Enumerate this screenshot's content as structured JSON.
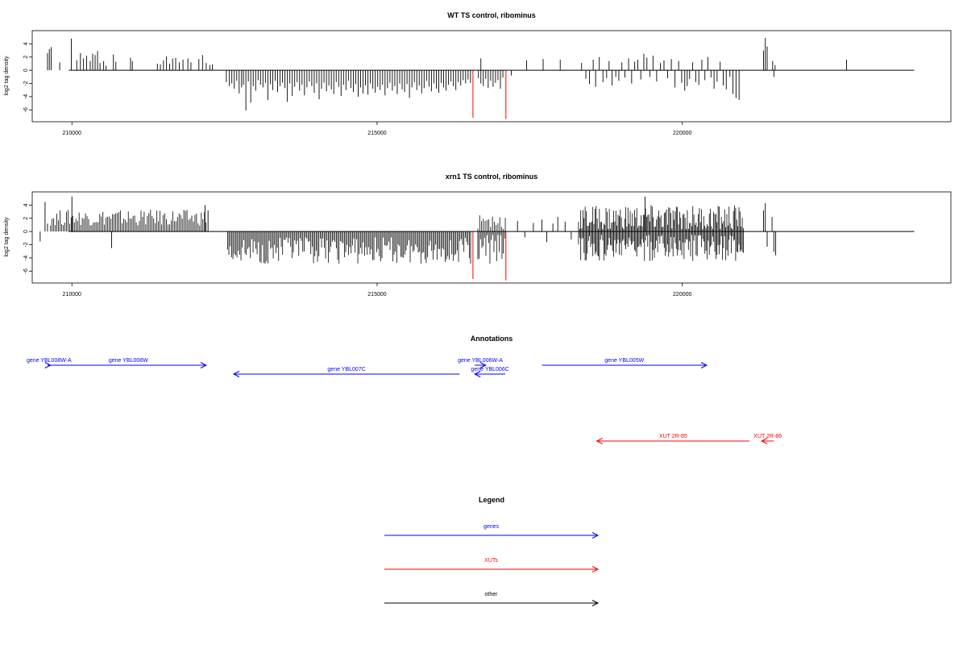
{
  "chart_data": [
    {
      "type": "bar",
      "title": "WT TS control, ribominus",
      "ylabel": "log2 tag density",
      "xlim": [
        209350,
        224400
      ],
      "ylim": [
        -7.8,
        6.0
      ],
      "x_ticks": [
        210000,
        215000,
        220000
      ],
      "y_ticks": [
        -6,
        -4,
        -2,
        0,
        2,
        4
      ],
      "colors": {
        "bars": "#000000",
        "highlight": "#ff0000"
      },
      "bars": [
        [
          209600,
          2.6
        ],
        [
          209630,
          3.2
        ],
        [
          209660,
          3.5
        ],
        [
          209800,
          1.2
        ],
        [
          209990,
          4.8
        ],
        [
          210080,
          1.5
        ],
        [
          210140,
          2.6
        ],
        [
          210190,
          1.8
        ],
        [
          210240,
          2.2
        ],
        [
          210300,
          1.4
        ],
        [
          210340,
          2.5
        ],
        [
          210380,
          2.3
        ],
        [
          210420,
          2.9
        ],
        [
          210460,
          1.1
        ],
        [
          210520,
          1.4
        ],
        [
          210560,
          0.7
        ],
        [
          210680,
          2.4
        ],
        [
          210720,
          1.3
        ],
        [
          210960,
          1.9
        ],
        [
          210990,
          1.4
        ],
        [
          211400,
          1.0
        ],
        [
          211450,
          0.9
        ],
        [
          211500,
          1.5
        ],
        [
          211550,
          2.1
        ],
        [
          211600,
          1.0
        ],
        [
          211650,
          1.8
        ],
        [
          211700,
          1.9
        ],
        [
          211760,
          1.2
        ],
        [
          211820,
          1.6
        ],
        [
          211900,
          1.8
        ],
        [
          211950,
          1.2
        ],
        [
          212080,
          1.7
        ],
        [
          212140,
          2.3
        ],
        [
          212200,
          1.1
        ],
        [
          212260,
          0.8
        ],
        [
          212300,
          0.9
        ],
        [
          212530,
          -1.8
        ],
        [
          212580,
          -2.4
        ],
        [
          212620,
          -2.0
        ],
        [
          212660,
          -2.8
        ],
        [
          212700,
          -1.6
        ],
        [
          212740,
          -3.5
        ],
        [
          212780,
          -2.6
        ],
        [
          212810,
          -2.2
        ],
        [
          212850,
          -6.1
        ],
        [
          212890,
          -1.7
        ],
        [
          212930,
          -4.9
        ],
        [
          212970,
          -2.4
        ],
        [
          213010,
          -3.1
        ],
        [
          213050,
          -1.5
        ],
        [
          213090,
          -2.2
        ],
        [
          213130,
          -2.6
        ],
        [
          213170,
          -1.9
        ],
        [
          213210,
          -4.5
        ],
        [
          213250,
          -2.1
        ],
        [
          213290,
          -3.0
        ],
        [
          213330,
          -1.6
        ],
        [
          213370,
          -3.3
        ],
        [
          213410,
          -2.4
        ],
        [
          213450,
          -1.9
        ],
        [
          213490,
          -2.7
        ],
        [
          213530,
          -4.8
        ],
        [
          213570,
          -2.0
        ],
        [
          213610,
          -3.9
        ],
        [
          213650,
          -2.5
        ],
        [
          213690,
          -1.8
        ],
        [
          213730,
          -3.1
        ],
        [
          213770,
          -2.2
        ],
        [
          213810,
          -3.8
        ],
        [
          213850,
          -2.6
        ],
        [
          213890,
          -1.7
        ],
        [
          213930,
          -2.4
        ],
        [
          213970,
          -3.4
        ],
        [
          214010,
          -2.0
        ],
        [
          214050,
          -4.4
        ],
        [
          214090,
          -2.8
        ],
        [
          214130,
          -1.9
        ],
        [
          214170,
          -3.2
        ],
        [
          214210,
          -2.3
        ],
        [
          214250,
          -2.9
        ],
        [
          214290,
          -3.6
        ],
        [
          214330,
          -1.8
        ],
        [
          214370,
          -2.5
        ],
        [
          214410,
          -3.9
        ],
        [
          214450,
          -2.2
        ],
        [
          214490,
          -3.0
        ],
        [
          214530,
          -1.6
        ],
        [
          214570,
          -2.7
        ],
        [
          214610,
          -3.3
        ],
        [
          214650,
          -2.1
        ],
        [
          214690,
          -4.0
        ],
        [
          214730,
          -2.6
        ],
        [
          214770,
          -3.5
        ],
        [
          214810,
          -2.3
        ],
        [
          214850,
          -3.7
        ],
        [
          214890,
          -2.0
        ],
        [
          214930,
          -2.8
        ],
        [
          214970,
          -3.4
        ],
        [
          215010,
          -2.5
        ],
        [
          215050,
          -3.0
        ],
        [
          215090,
          -2.2
        ],
        [
          215130,
          -3.8
        ],
        [
          215170,
          -2.7
        ],
        [
          215210,
          -1.9
        ],
        [
          215250,
          -3.1
        ],
        [
          215290,
          -2.4
        ],
        [
          215330,
          -3.6
        ],
        [
          215370,
          -2.0
        ],
        [
          215410,
          -2.9
        ],
        [
          215450,
          -3.3
        ],
        [
          215490,
          -2.1
        ],
        [
          215530,
          -4.2
        ],
        [
          215570,
          -2.6
        ],
        [
          215610,
          -1.8
        ],
        [
          215650,
          -3.0
        ],
        [
          215690,
          -2.3
        ],
        [
          215730,
          -3.5
        ],
        [
          215770,
          -2.7
        ],
        [
          215810,
          -1.6
        ],
        [
          215850,
          -2.5
        ],
        [
          215890,
          -3.2
        ],
        [
          215930,
          -2.0
        ],
        [
          215970,
          -2.8
        ],
        [
          216010,
          -3.4
        ],
        [
          216050,
          -1.9
        ],
        [
          216090,
          -2.6
        ],
        [
          216130,
          -3.1
        ],
        [
          216170,
          -2.2
        ],
        [
          216210,
          -1.7
        ],
        [
          216250,
          -2.4
        ],
        [
          216290,
          -3.0
        ],
        [
          216330,
          -1.8
        ],
        [
          216370,
          -2.3
        ],
        [
          216410,
          -1.5
        ],
        [
          216450,
          -2.0
        ],
        [
          216490,
          -1.4
        ],
        [
          216530,
          -1.9
        ],
        [
          216660,
          -1.2
        ],
        [
          216700,
          -2.0
        ],
        [
          216740,
          -2.4
        ],
        [
          216780,
          -1.3
        ],
        [
          216820,
          -2.7
        ],
        [
          216860,
          -1.6
        ],
        [
          216900,
          -2.5
        ],
        [
          216940,
          -1.9
        ],
        [
          216980,
          -1.5
        ],
        [
          217020,
          -2.8
        ],
        [
          217060,
          -1.1
        ],
        [
          216700,
          1.8
        ],
        [
          217200,
          -0.8
        ],
        [
          217450,
          1.5
        ],
        [
          217720,
          1.7
        ],
        [
          218000,
          1.6
        ],
        [
          218350,
          1.1
        ],
        [
          218420,
          -1.3
        ],
        [
          218480,
          -2.1
        ],
        [
          218540,
          1.6
        ],
        [
          218580,
          -2.5
        ],
        [
          218640,
          2.0
        ],
        [
          218700,
          -1.8
        ],
        [
          218760,
          -1.2
        ],
        [
          218800,
          1.4
        ],
        [
          218850,
          -2.3
        ],
        [
          218910,
          -1.0
        ],
        [
          218960,
          -1.6
        ],
        [
          219010,
          1.2
        ],
        [
          219060,
          -1.1
        ],
        [
          219120,
          1.8
        ],
        [
          219170,
          -2.0
        ],
        [
          219220,
          1.3
        ],
        [
          219270,
          1.6
        ],
        [
          219320,
          -1.4
        ],
        [
          219370,
          2.5
        ],
        [
          219420,
          1.9
        ],
        [
          219470,
          -1.0
        ],
        [
          219520,
          2.2
        ],
        [
          219580,
          -1.7
        ],
        [
          219640,
          1.1
        ],
        [
          219700,
          1.5
        ],
        [
          219760,
          -1.2
        ],
        [
          219820,
          1.7
        ],
        [
          219880,
          -2.6
        ],
        [
          219940,
          1.4
        ],
        [
          219990,
          -1.9
        ],
        [
          220040,
          -3.1
        ],
        [
          220080,
          -2.4
        ],
        [
          220120,
          -1.3
        ],
        [
          220170,
          1.2
        ],
        [
          220220,
          -1.8
        ],
        [
          220270,
          -2.2
        ],
        [
          220320,
          1.6
        ],
        [
          220370,
          -1.5
        ],
        [
          220420,
          2.0
        ],
        [
          220470,
          -1.1
        ],
        [
          220520,
          -2.8
        ],
        [
          220570,
          -1.7
        ],
        [
          220620,
          1.3
        ],
        [
          220670,
          -2.3
        ],
        [
          220720,
          -2.9
        ],
        [
          220780,
          -1.0
        ],
        [
          220830,
          -3.6
        ],
        [
          220880,
          -4.2
        ],
        [
          220930,
          -4.5
        ],
        [
          221330,
          3.0
        ],
        [
          221360,
          4.9
        ],
        [
          221390,
          3.6
        ],
        [
          221480,
          1.4
        ],
        [
          221500,
          -1.0
        ],
        [
          221520,
          0.8
        ],
        [
          222690,
          1.6
        ]
      ],
      "highlight_bars": [
        [
          216570,
          -7.2
        ],
        [
          217110,
          -7.4
        ]
      ]
    },
    {
      "type": "bar",
      "title": "xrn1 TS control, ribominus",
      "ylabel": "log2 tag density",
      "xlim": [
        209350,
        224400
      ],
      "ylim": [
        -7.8,
        6.0
      ],
      "x_ticks": [
        210000,
        215000,
        220000
      ],
      "y_ticks": [
        -6,
        -4,
        -2,
        0,
        2,
        4
      ],
      "colors": {
        "bars": "#000000",
        "highlight": "#ff0000"
      },
      "dense_segments": [
        {
          "start": 209650,
          "end": 212200,
          "step": 26,
          "sign": 1,
          "base": 2.1,
          "amp": 1.2
        },
        {
          "start": 212550,
          "end": 216550,
          "step": 22,
          "sign": -1,
          "base": 2.9,
          "amp": 2.0
        },
        {
          "start": 216650,
          "end": 217100,
          "step": 22,
          "sign": -1,
          "base": 2.8,
          "amp": 2.5
        },
        {
          "start": 216650,
          "end": 217100,
          "step": 30,
          "sign": 1,
          "base": 1.5,
          "amp": 1.6
        },
        {
          "start": 218300,
          "end": 221000,
          "step": 18,
          "sign": 1,
          "base": 2.0,
          "amp": 2.0
        },
        {
          "start": 218300,
          "end": 221000,
          "step": 18,
          "sign": -1,
          "base": 2.5,
          "amp": 2.0
        }
      ],
      "bars": [
        [
          209480,
          -1.5
        ],
        [
          209560,
          4.5
        ],
        [
          209600,
          1.2
        ],
        [
          210000,
          5.3
        ],
        [
          210650,
          -2.5
        ],
        [
          212180,
          4.0
        ],
        [
          212230,
          3.2
        ],
        [
          217300,
          1.6
        ],
        [
          217420,
          -0.9
        ],
        [
          217560,
          1.3
        ],
        [
          217700,
          1.8
        ],
        [
          217780,
          -1.6
        ],
        [
          217880,
          1.2
        ],
        [
          217960,
          2.2
        ],
        [
          218080,
          1.5
        ],
        [
          218180,
          -1.2
        ],
        [
          219390,
          5.3
        ],
        [
          221330,
          3.2
        ],
        [
          221360,
          4.3
        ],
        [
          221390,
          -2.3
        ],
        [
          221470,
          2.2
        ],
        [
          221500,
          -3.1
        ],
        [
          221530,
          -3.6
        ]
      ],
      "highlight_bars": [
        [
          216570,
          -7.2
        ],
        [
          217110,
          -7.4
        ]
      ]
    }
  ],
  "annotations": {
    "title": "Annotations",
    "genes_color": "#0000ff",
    "xuts_color": "#ff0000",
    "features": [
      {
        "label": "gene YBL008W-A",
        "start": 209600,
        "end": 209650,
        "strand": "+",
        "track": "genes",
        "row": 0
      },
      {
        "label": "gene YBL008W",
        "start": 209650,
        "end": 212200,
        "strand": "+",
        "track": "genes",
        "row": 0
      },
      {
        "label": "gene YBL007C",
        "start": 212650,
        "end": 216350,
        "strand": "-",
        "track": "genes",
        "row": 1
      },
      {
        "label": "gene YBL006W-A",
        "start": 216600,
        "end": 216780,
        "strand": "+",
        "track": "genes",
        "row": 0
      },
      {
        "label": "gene YBL006C",
        "start": 216600,
        "end": 217100,
        "strand": "-",
        "track": "genes",
        "row": 1
      },
      {
        "label": "gene YBL005W",
        "start": 217700,
        "end": 220400,
        "strand": "+",
        "track": "genes",
        "row": 0
      },
      {
        "label": "XUT 2R-85",
        "start": 218600,
        "end": 221100,
        "strand": "-",
        "track": "xuts",
        "row": 0
      },
      {
        "label": "XUT 2R-86",
        "start": 221300,
        "end": 221500,
        "strand": "-",
        "track": "xuts",
        "row": 0
      }
    ]
  },
  "legend": {
    "title": "Legend",
    "items": [
      {
        "label": "genes",
        "color": "#0000ff"
      },
      {
        "label": "XUTs",
        "color": "#ff0000"
      },
      {
        "label": "other",
        "color": "#000000"
      }
    ]
  }
}
